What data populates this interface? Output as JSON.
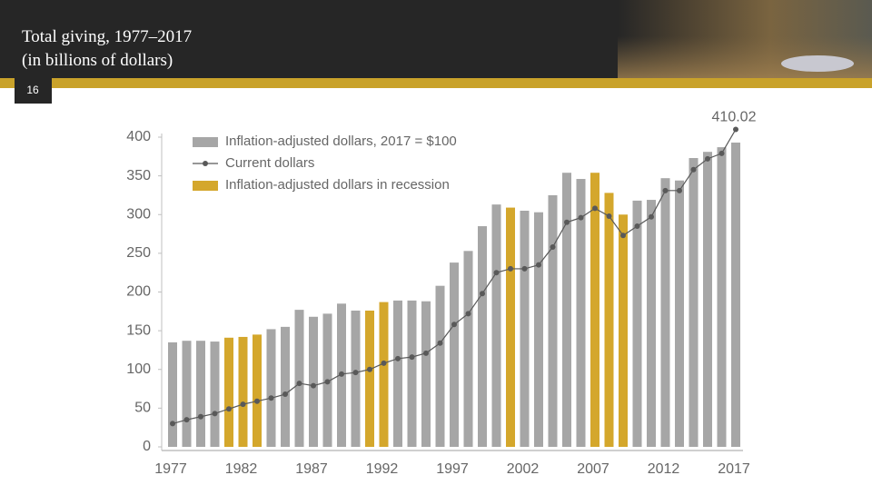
{
  "header": {
    "title_lines": [
      "Total giving, 1977–2017",
      "(in billions of dollars)"
    ],
    "slide_number": "16"
  },
  "chart_data": {
    "type": "bar",
    "categories": [
      "1977",
      null,
      null,
      null,
      null,
      "1982",
      null,
      null,
      null,
      null,
      "1987",
      null,
      null,
      null,
      null,
      "1992",
      null,
      null,
      null,
      null,
      "1997",
      null,
      null,
      null,
      null,
      "2002",
      null,
      null,
      null,
      null,
      "2007",
      null,
      null,
      null,
      null,
      "2012",
      null,
      null,
      null,
      null,
      "2017"
    ],
    "series": [
      {
        "name": "Inflation-adjusted dollars, 2017 = $100",
        "type": "bar",
        "color": "#a6a6a6",
        "values": [
          135,
          137,
          137,
          136,
          null,
          null,
          null,
          152,
          155,
          177,
          168,
          172,
          185,
          176,
          null,
          null,
          189,
          189,
          188,
          208,
          238,
          253,
          285,
          313,
          null,
          305,
          303,
          325,
          354,
          346,
          null,
          null,
          null,
          318,
          319,
          347,
          344,
          373,
          381,
          387,
          393
        ]
      },
      {
        "name": "Current dollars",
        "type": "line",
        "color": "#595959",
        "values": [
          30,
          35,
          39,
          43,
          49,
          55,
          59,
          63,
          68,
          82,
          79,
          84,
          94,
          96,
          100,
          108,
          114,
          116,
          121,
          134,
          158,
          172,
          198,
          225,
          230,
          230,
          235,
          258,
          290,
          296,
          308,
          298,
          273,
          285,
          297,
          331,
          331,
          358,
          372,
          379,
          410.02
        ],
        "value_labels": [
          null,
          null,
          null,
          null,
          null,
          null,
          null,
          null,
          null,
          null,
          null,
          null,
          null,
          null,
          null,
          null,
          null,
          null,
          null,
          null,
          null,
          null,
          null,
          null,
          null,
          null,
          null,
          null,
          null,
          null,
          null,
          null,
          null,
          null,
          null,
          null,
          null,
          null,
          null,
          null,
          "410.02"
        ]
      },
      {
        "name": "Inflation-adjusted dollars in recession",
        "type": "bar",
        "color": "#d4a72c",
        "values": [
          null,
          null,
          null,
          null,
          141,
          142,
          145,
          null,
          null,
          null,
          null,
          null,
          null,
          null,
          176,
          187,
          null,
          null,
          null,
          null,
          null,
          null,
          null,
          null,
          309,
          null,
          null,
          null,
          null,
          null,
          354,
          328,
          300,
          null,
          null,
          null,
          null,
          null,
          null,
          null,
          null
        ]
      }
    ],
    "ylim": [
      0,
      400
    ],
    "yticks": [
      0,
      50,
      100,
      150,
      200,
      250,
      300,
      350,
      400
    ],
    "grid": false
  }
}
